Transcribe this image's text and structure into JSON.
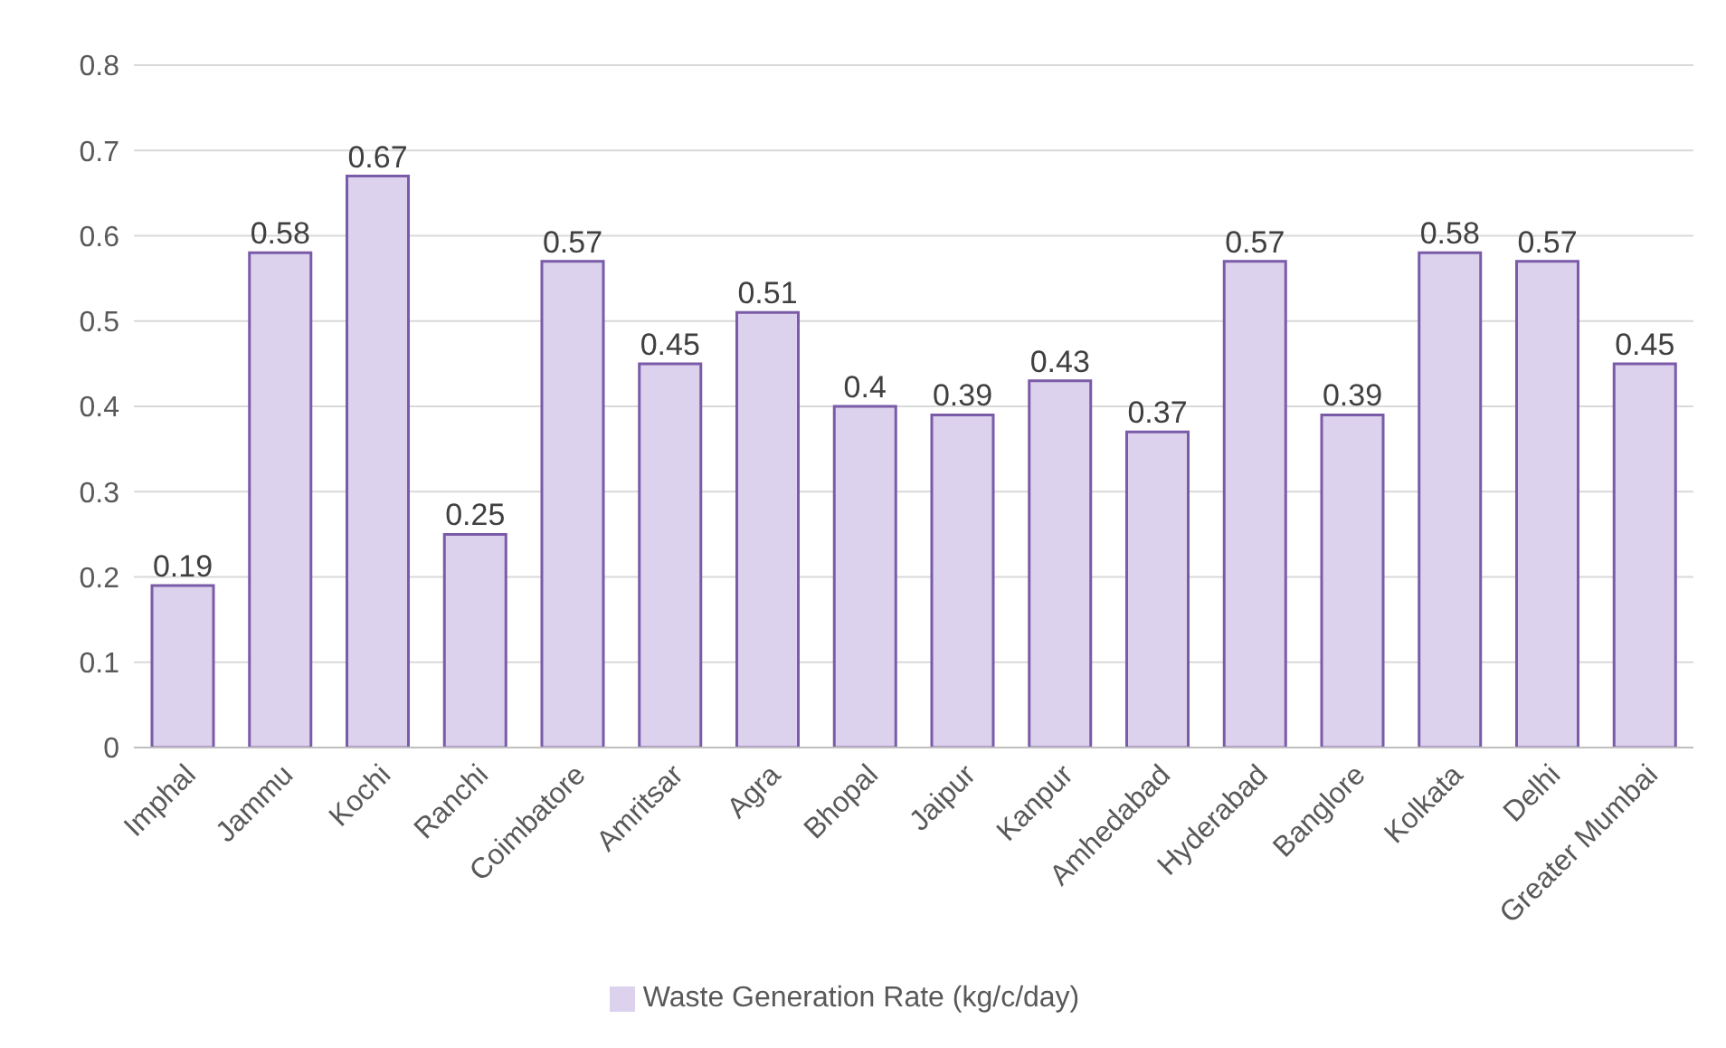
{
  "chart_data": {
    "type": "bar",
    "categories": [
      "Imphal",
      "Jammu",
      "Kochi",
      "Ranchi",
      "Coimbatore",
      "Amritsar",
      "Agra",
      "Bhopal",
      "Jaipur",
      "Kanpur",
      "Amhedabad",
      "Hyderabad",
      "Banglore",
      "Kolkata",
      "Delhi",
      "Greater Mumbai"
    ],
    "series": [
      {
        "name": "Waste Generation Rate (kg/c/day)",
        "color": "#dcd2ee",
        "values": [
          0.19,
          0.58,
          0.67,
          0.25,
          0.57,
          0.45,
          0.51,
          0.4,
          0.39,
          0.43,
          0.37,
          0.57,
          0.39,
          0.58,
          0.57,
          0.45
        ]
      }
    ],
    "ylim": [
      0,
      0.8
    ],
    "yticks": [
      0,
      0.1,
      0.2,
      0.3,
      0.4,
      0.5,
      0.6,
      0.7,
      0.8
    ],
    "grid": "y",
    "legend": "bottom",
    "data_labels": true
  }
}
